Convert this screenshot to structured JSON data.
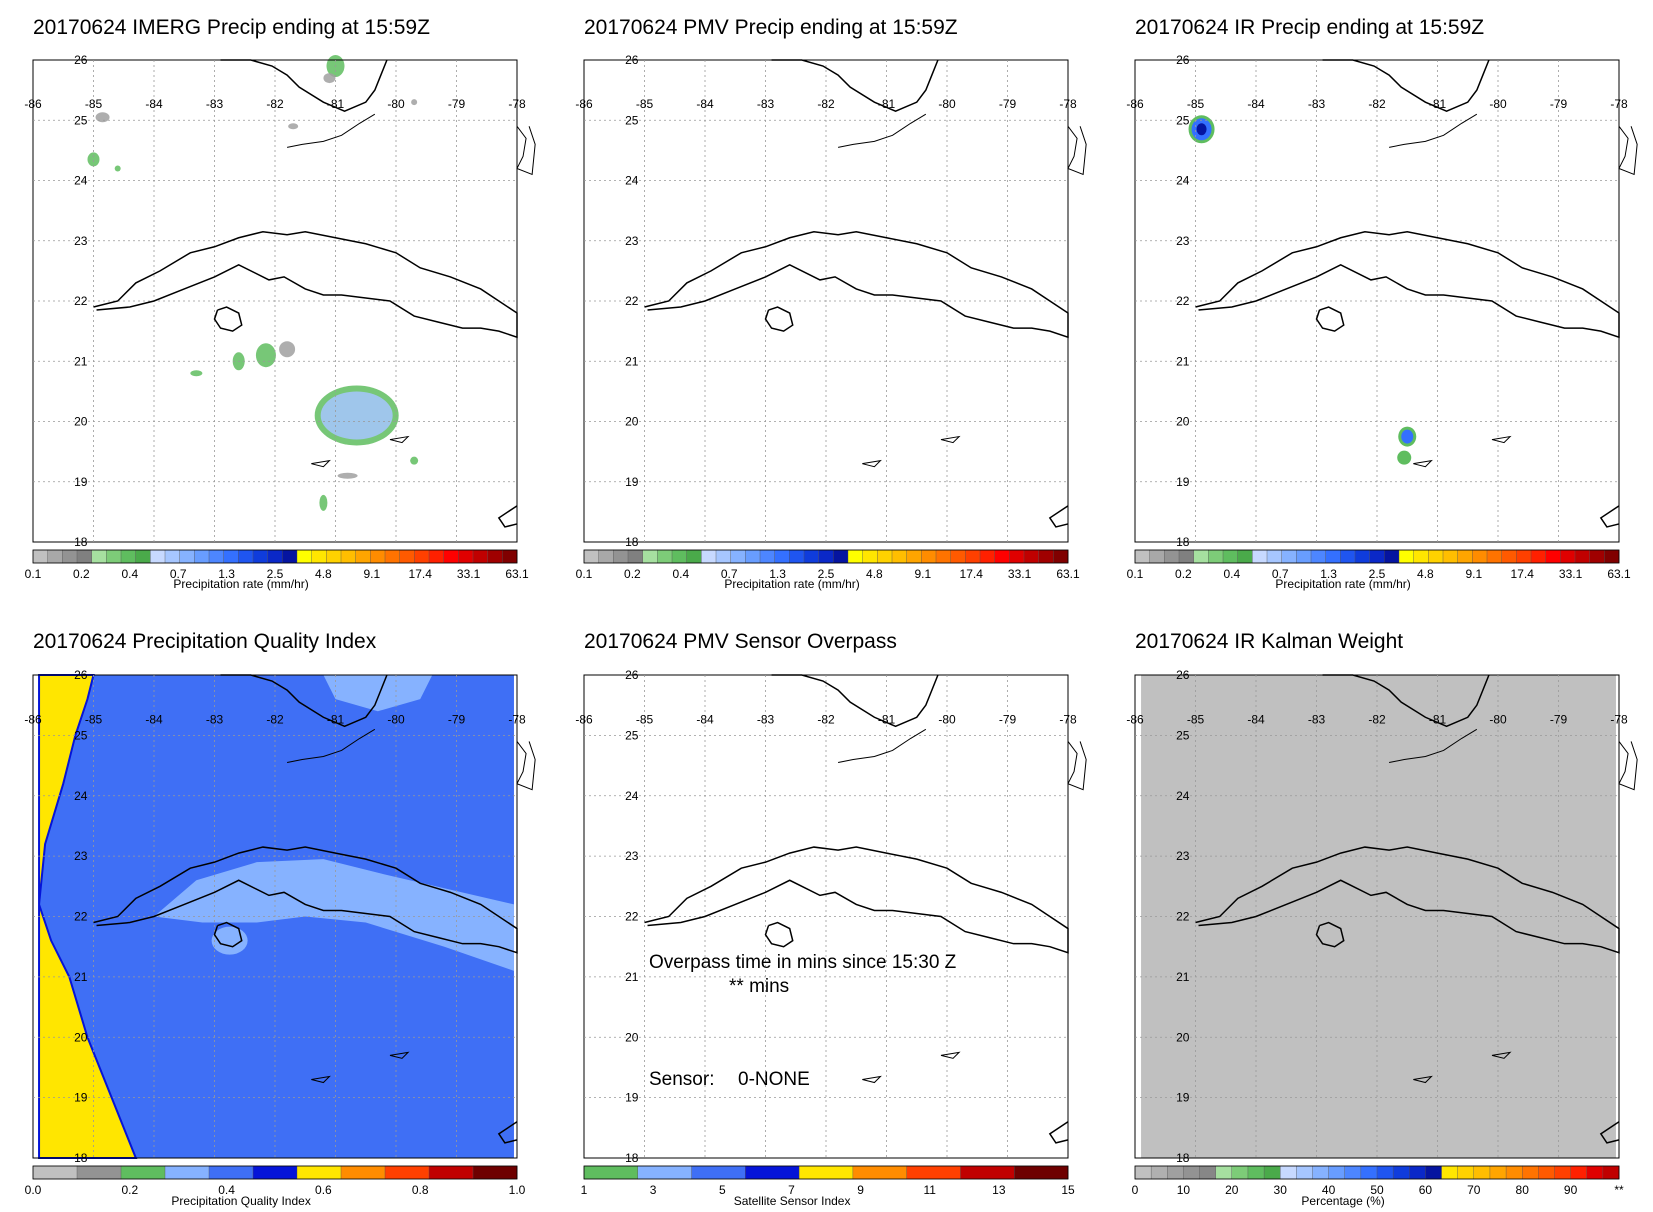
{
  "map": {
    "lon_ticks": [
      "-86",
      "-85",
      "-84",
      "-83",
      "-82",
      "-81",
      "-80",
      "-79",
      "-78"
    ],
    "lat_ticks": [
      "26",
      "25",
      "24",
      "23",
      "22",
      "21",
      "20",
      "19",
      "18"
    ],
    "lon_range": [
      -86,
      -78
    ],
    "lat_range": [
      18,
      26
    ],
    "grid": true
  },
  "panels": [
    {
      "title": "20170624 IMERG Precip ending at 15:59Z",
      "field": "imerg-precip",
      "colorbar": {
        "label": "Precipitation rate (mm/hr)",
        "ticks": [
          "0.1",
          "0.2",
          "0.4",
          "0.7",
          "1.3",
          "2.5",
          "4.8",
          "9.1",
          "17.4",
          "33.1",
          "63.1"
        ]
      }
    },
    {
      "title": "20170624 PMV Precip ending at 15:59Z",
      "field": "pmv-precip",
      "colorbar": {
        "label": "Precipitation rate (mm/hr)",
        "ticks": [
          "0.1",
          "0.2",
          "0.4",
          "0.7",
          "1.3",
          "2.5",
          "4.8",
          "9.1",
          "17.4",
          "33.1",
          "63.1"
        ]
      }
    },
    {
      "title": "20170624 IR Precip ending at 15:59Z",
      "field": "ir-precip",
      "colorbar": {
        "label": "Precipitation rate (mm/hr)",
        "ticks": [
          "0.1",
          "0.2",
          "0.4",
          "0.7",
          "1.3",
          "2.5",
          "4.8",
          "9.1",
          "17.4",
          "33.1",
          "63.1"
        ]
      }
    },
    {
      "title": "20170624 Precipitation Quality Index",
      "field": "quality-index",
      "colorbar": {
        "label": "Precipitation Quality Index",
        "ticks": [
          "0.0",
          "0.2",
          "0.4",
          "0.6",
          "0.8",
          "1.0"
        ]
      }
    },
    {
      "title": "20170624 PMV Sensor Overpass",
      "field": "sensor-overpass",
      "annotations": {
        "overpass_line1": "Overpass time in mins since 15:30 Z",
        "overpass_line2": "** mins",
        "sensor_label": "Sensor:",
        "sensor_value": "0-NONE"
      },
      "colorbar": {
        "label": "Satellite Sensor Index",
        "ticks": [
          "1",
          "3",
          "5",
          "7",
          "9",
          "11",
          "13",
          "15"
        ]
      }
    },
    {
      "title": "20170624 IR Kalman Weight",
      "field": "kalman-weight",
      "colorbar": {
        "label": "Percentage (%)",
        "ticks": [
          "0",
          "10",
          "20",
          "30",
          "40",
          "50",
          "60",
          "70",
          "80",
          "90",
          "**"
        ]
      }
    }
  ],
  "colors": {
    "precip_scale": [
      "#c0c0c0",
      "#a8a8a8",
      "#939393",
      "#808080",
      "#a6e0a0",
      "#7dcc78",
      "#5fbd5f",
      "#4aaa4a",
      "#c7d9ff",
      "#a6c6ff",
      "#86b2ff",
      "#689dff",
      "#4d86ff",
      "#3470ff",
      "#1f55f0",
      "#0f3cdc",
      "#0a28c8",
      "#0514a0",
      "#ffff00",
      "#ffe600",
      "#ffd200",
      "#ffbe00",
      "#ffa500",
      "#ff8c00",
      "#ff7300",
      "#ff5a00",
      "#ff4000",
      "#ff2000",
      "#ff0000",
      "#e00000",
      "#c00000",
      "#a00000",
      "#800000"
    ],
    "quality_scale": [
      "#c0c0c0",
      "#939393",
      "#5fbd5f",
      "#86b2ff",
      "#3f6ff5",
      "#0514d8",
      "#ffe600",
      "#ff8c00",
      "#ff4000",
      "#c00000",
      "#6e0000"
    ],
    "sensor_scale": [
      "#5fbd5f",
      "#86b2ff",
      "#3f6ff5",
      "#0514d8",
      "#ffe600",
      "#ff8c00",
      "#ff4000",
      "#c00000",
      "#6e0000"
    ],
    "kalman_scale": [
      "#c0c0c0",
      "#b0b0b0",
      "#a0a0a0",
      "#939393",
      "#878787",
      "#a6e0a0",
      "#7dcc78",
      "#5fbd5f",
      "#4aaa4a",
      "#c7d9ff",
      "#a6c6ff",
      "#86b2ff",
      "#689dff",
      "#4d86ff",
      "#3470ff",
      "#1f55f0",
      "#0f3cdc",
      "#0a28c8",
      "#0514a0",
      "#ffe600",
      "#ffd200",
      "#ffbe00",
      "#ffa500",
      "#ff8c00",
      "#ff7300",
      "#ff5a00",
      "#ff4000",
      "#ff2000",
      "#e00000",
      "#c00000"
    ],
    "quality_low": "#ffe600",
    "quality_mid": "#3f6ff5",
    "quality_high": "#86b2ff",
    "kalman_fill": "#c0c0c0",
    "precip_green": "#5fbd5f",
    "precip_lightgreen": "#a6e0a0",
    "precip_lightblue": "#a6c6ff",
    "precip_blue": "#3470ff",
    "precip_darkblue": "#0514a0",
    "precip_gray": "#a0a0a0"
  }
}
